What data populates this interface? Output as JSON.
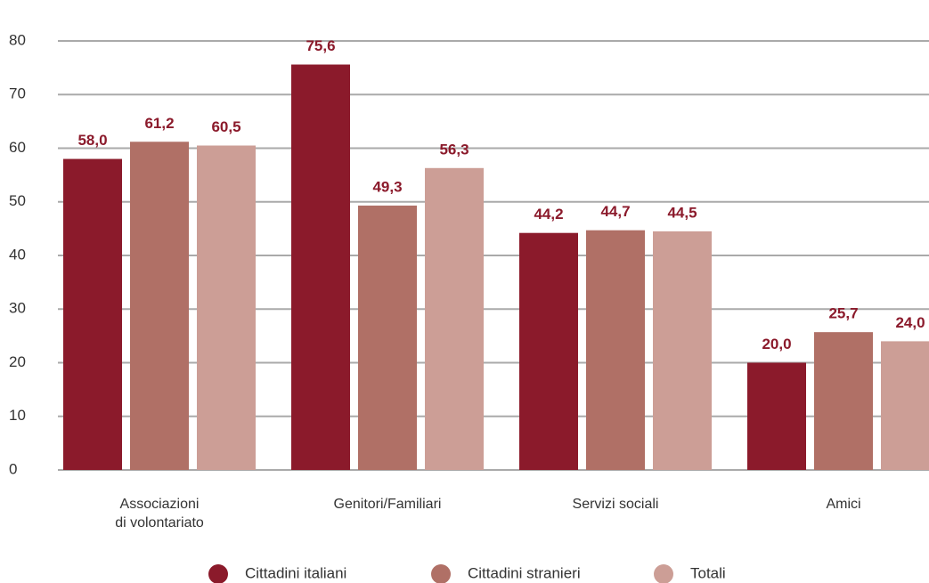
{
  "chart_data": {
    "type": "bar",
    "categories": [
      "Associazioni\ndi volontariato",
      "Genitori/Familiari",
      "Servizi sociali",
      "Amici"
    ],
    "series": [
      {
        "name": "Cittadini italiani",
        "color": "#8b1a2b",
        "values": [
          58.0,
          75.6,
          44.2,
          20.0
        ],
        "value_labels": [
          "58,0",
          "75,6",
          "44,2",
          "20,0"
        ]
      },
      {
        "name": "Cittadini stranieri",
        "color": "#b07066",
        "values": [
          61.2,
          49.3,
          44.7,
          25.7
        ],
        "value_labels": [
          "61,2",
          "49,3",
          "44,7",
          "25,7"
        ]
      },
      {
        "name": "Totali",
        "color": "#cc9e96",
        "values": [
          60.5,
          56.3,
          44.5,
          24.0
        ],
        "value_labels": [
          "60,5",
          "56,3",
          "44,5",
          "24,0"
        ]
      }
    ],
    "ylim": [
      0,
      80
    ],
    "yticks": [
      0,
      10,
      20,
      30,
      40,
      50,
      60,
      70,
      80
    ],
    "grid": true,
    "legend": "bottom"
  }
}
